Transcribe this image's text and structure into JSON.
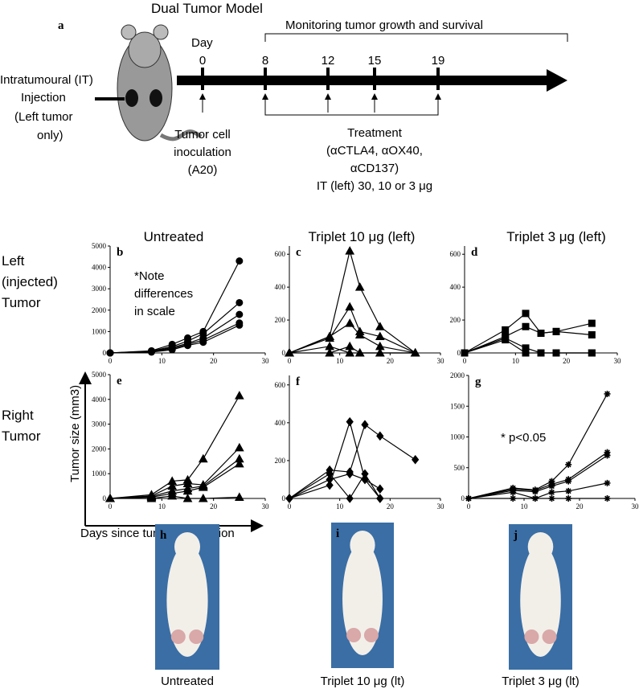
{
  "schematic": {
    "title": "Dual Tumor Model",
    "panel": "a",
    "day_label": "Day",
    "days": [
      0,
      8,
      12,
      15,
      19
    ],
    "monitoring": "Monitoring tumor growth and survival",
    "injection_label": [
      "Intratumoural (IT)",
      "Injection",
      "(Left  tumor",
      "only)"
    ],
    "inoculation": [
      "Tumor cell",
      "inoculation",
      "(A20)"
    ],
    "treatment": [
      "Treatment",
      "(αCTLA4, αOX40,",
      "αCD137)",
      "IT (left) 30, 10 or 3 μg"
    ]
  },
  "column_titles": [
    "Untreated",
    "Triplet 10 μg (left)",
    "Triplet 3 μg (left)"
  ],
  "row_labels": [
    [
      "Left",
      "(injected)",
      "Tumor"
    ],
    [
      "Right",
      "Tumor"
    ]
  ],
  "y_axis_label": "Tumor size (mm3)",
  "x_axis_label": "Days since tumor inoculation",
  "chart_data": [
    {
      "type": "line",
      "panel": "b",
      "marker": "circle",
      "annotation": [
        "*Note",
        "differences",
        "in scale"
      ],
      "x": [
        0,
        8,
        12,
        15,
        18,
        25
      ],
      "xlim": [
        0,
        30
      ],
      "xticks": [
        0,
        10,
        20,
        30
      ],
      "ylim": [
        0,
        5000
      ],
      "yticks": [
        0,
        1000,
        2000,
        3000,
        4000,
        5000
      ],
      "series": [
        {
          "color": "#000000",
          "values": [
            0,
            100,
            400,
            700,
            1000,
            4300
          ]
        },
        {
          "color": "#000000",
          "values": [
            0,
            80,
            300,
            550,
            900,
            2350
          ]
        },
        {
          "color": "#000000",
          "values": [
            0,
            60,
            250,
            450,
            700,
            1800
          ]
        },
        {
          "color": "#000000",
          "values": [
            0,
            50,
            200,
            400,
            600,
            1400
          ]
        },
        {
          "color": "#000000",
          "values": [
            0,
            40,
            150,
            350,
            500,
            1300
          ]
        }
      ]
    },
    {
      "type": "line",
      "panel": "c",
      "marker": "triangle",
      "x": [
        0,
        8,
        12,
        14,
        18,
        25
      ],
      "xlim": [
        0,
        30
      ],
      "xticks": [
        0,
        10,
        20,
        30
      ],
      "ylim": [
        0,
        650
      ],
      "yticks": [
        0,
        200,
        400,
        600
      ],
      "series": [
        {
          "color": "#000000",
          "values": [
            0,
            100,
            620,
            400,
            160,
            0
          ]
        },
        {
          "color": "#000000",
          "values": [
            0,
            90,
            280,
            130,
            100,
            0
          ]
        },
        {
          "color": "#000000",
          "values": [
            0,
            100,
            180,
            110,
            40,
            0
          ]
        },
        {
          "color": "#000000",
          "values": [
            0,
            40,
            0,
            0,
            0,
            0
          ]
        },
        {
          "color": "#000000",
          "values": [
            0,
            0,
            40,
            0,
            0,
            0
          ]
        }
      ]
    },
    {
      "type": "line",
      "panel": "d",
      "marker": "square",
      "x": [
        0,
        8,
        12,
        15,
        18,
        25
      ],
      "xlim": [
        0,
        30
      ],
      "xticks": [
        0,
        10,
        20,
        30
      ],
      "ylim": [
        0,
        650
      ],
      "yticks": [
        0,
        200,
        400,
        600
      ],
      "series": [
        {
          "color": "#000000",
          "values": [
            0,
            140,
            240,
            120,
            130,
            180
          ]
        },
        {
          "color": "#000000",
          "values": [
            0,
            100,
            160,
            120,
            130,
            110
          ]
        },
        {
          "color": "#000000",
          "values": [
            0,
            90,
            30,
            0,
            0,
            0
          ]
        },
        {
          "color": "#000000",
          "values": [
            0,
            80,
            0,
            0,
            0,
            0
          ]
        }
      ]
    },
    {
      "type": "line",
      "panel": "e",
      "marker": "triangle",
      "x": [
        0,
        8,
        12,
        15,
        18,
        25
      ],
      "xlim": [
        0,
        30
      ],
      "xticks": [
        0,
        10,
        20,
        30
      ],
      "ylim": [
        0,
        5000
      ],
      "yticks": [
        0,
        1000,
        2000,
        3000,
        4000,
        5000
      ],
      "series": [
        {
          "color": "#000000",
          "values": [
            0,
            150,
            700,
            750,
            1600,
            4150
          ]
        },
        {
          "color": "#000000",
          "values": [
            0,
            100,
            500,
            600,
            550,
            2050
          ]
        },
        {
          "color": "#000000",
          "values": [
            0,
            80,
            300,
            400,
            500,
            1600
          ]
        },
        {
          "color": "#000000",
          "values": [
            0,
            50,
            200,
            300,
            450,
            1400
          ]
        },
        {
          "color": "#000000",
          "values": [
            0,
            0,
            100,
            0,
            0,
            50
          ]
        }
      ]
    },
    {
      "type": "line",
      "panel": "f",
      "marker": "diamond",
      "x": [
        0,
        8,
        12,
        15,
        18,
        25
      ],
      "xlim": [
        0,
        30
      ],
      "xticks": [
        0,
        10,
        20,
        30
      ],
      "ylim": [
        0,
        650
      ],
      "yticks": [
        0,
        200,
        400,
        600
      ],
      "series": [
        {
          "color": "#000000",
          "values": [
            0,
            70,
            405,
            100,
            0,
            null
          ]
        },
        {
          "color": "#000000",
          "values": [
            0,
            150,
            140,
            390,
            330,
            205
          ]
        },
        {
          "color": "#000000",
          "values": [
            0,
            130,
            0,
            130,
            0,
            null
          ]
        },
        {
          "color": "#000000",
          "values": [
            0,
            100,
            130,
            100,
            50,
            null
          ]
        }
      ]
    },
    {
      "type": "line",
      "panel": "g",
      "marker": "star",
      "annotation": [
        "* p<0.05"
      ],
      "x": [
        0,
        8,
        12,
        15,
        18,
        25
      ],
      "xlim": [
        0,
        30
      ],
      "xticks": [
        0,
        10,
        20,
        30
      ],
      "ylim": [
        0,
        2000
      ],
      "yticks": [
        0,
        500,
        1000,
        1500,
        2000
      ],
      "series": [
        {
          "color": "#000000",
          "values": [
            0,
            170,
            140,
            280,
            550,
            1700
          ]
        },
        {
          "color": "#000000",
          "values": [
            0,
            150,
            130,
            230,
            310,
            750
          ]
        },
        {
          "color": "#000000",
          "values": [
            0,
            130,
            110,
            200,
            280,
            700
          ]
        },
        {
          "color": "#000000",
          "values": [
            0,
            100,
            0,
            100,
            120,
            250
          ]
        },
        {
          "color": "#000000",
          "values": [
            0,
            0,
            0,
            0,
            0,
            0
          ]
        }
      ]
    }
  ],
  "photos": [
    {
      "panel": "h",
      "caption": "Untreated"
    },
    {
      "panel": "i",
      "caption": "Triplet 10 μg (lt)"
    },
    {
      "panel": "j",
      "caption": "Triplet 3 μg (lt)"
    }
  ]
}
